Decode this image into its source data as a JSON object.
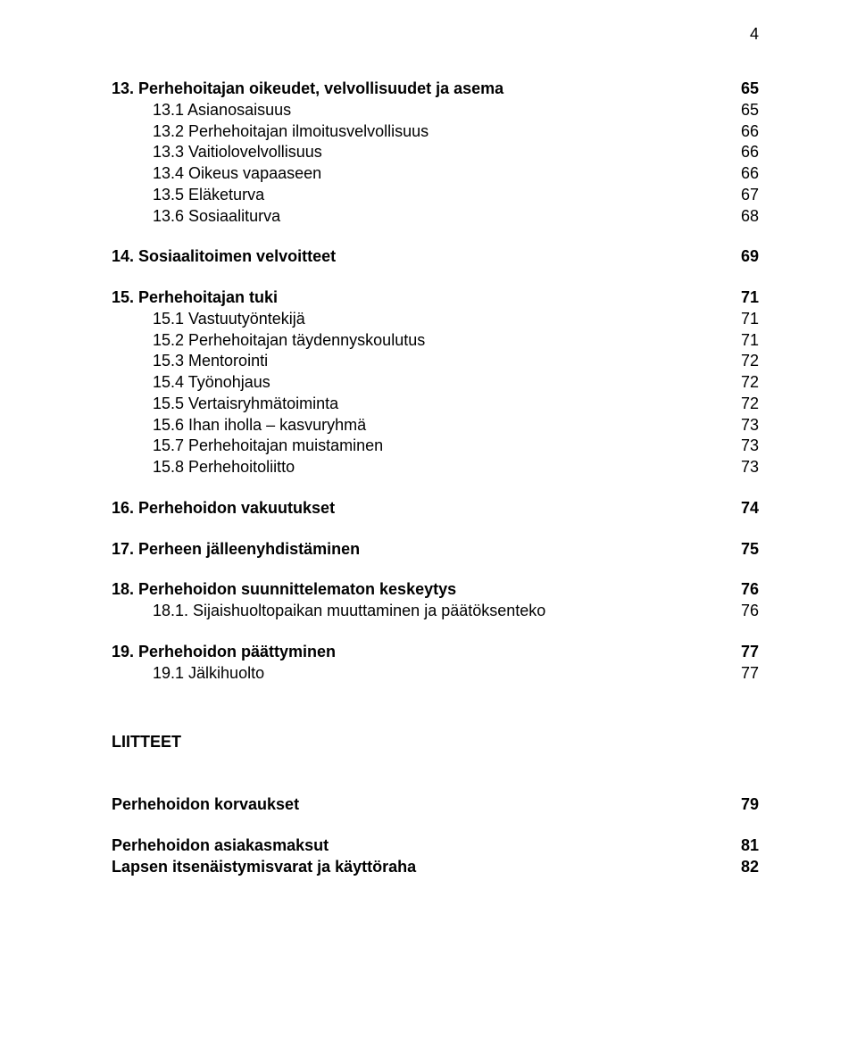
{
  "page_number": "4",
  "blocks": [
    {
      "rows": [
        {
          "label": "13. Perhehoitajan oikeudet, velvollisuudet ja asema",
          "num": "65",
          "bold": true,
          "indent": false
        },
        {
          "label": "13.1 Asianosaisuus",
          "num": "65",
          "bold": false,
          "indent": true
        },
        {
          "label": "13.2 Perhehoitajan ilmoitusvelvollisuus",
          "num": "66",
          "bold": false,
          "indent": true
        },
        {
          "label": "13.3 Vaitiolovelvollisuus",
          "num": "66",
          "bold": false,
          "indent": true
        },
        {
          "label": "13.4 Oikeus vapaaseen",
          "num": "66",
          "bold": false,
          "indent": true
        },
        {
          "label": "13.5 Eläketurva",
          "num": "67",
          "bold": false,
          "indent": true
        },
        {
          "label": "13.6 Sosiaaliturva",
          "num": "68",
          "bold": false,
          "indent": true
        }
      ]
    },
    {
      "rows": [
        {
          "label": "14. Sosiaalitoimen velvoitteet",
          "num": "69",
          "bold": true,
          "indent": false
        }
      ]
    },
    {
      "rows": [
        {
          "label": "15. Perhehoitajan tuki",
          "num": "71",
          "bold": true,
          "indent": false
        },
        {
          "label": "15.1 Vastuutyöntekijä",
          "num": "71",
          "bold": false,
          "indent": true
        },
        {
          "label": "15.2 Perhehoitajan täydennyskoulutus",
          "num": "71",
          "bold": false,
          "indent": true
        },
        {
          "label": "15.3 Mentorointi",
          "num": "72",
          "bold": false,
          "indent": true
        },
        {
          "label": "15.4 Työnohjaus",
          "num": "72",
          "bold": false,
          "indent": true
        },
        {
          "label": "15.5 Vertaisryhmätoiminta",
          "num": "72",
          "bold": false,
          "indent": true
        },
        {
          "label": "15.6 Ihan iholla – kasvuryhmä",
          "num": "73",
          "bold": false,
          "indent": true
        },
        {
          "label": "15.7 Perhehoitajan muistaminen",
          "num": "73",
          "bold": false,
          "indent": true
        },
        {
          "label": "15.8 Perhehoitoliitto",
          "num": "73",
          "bold": false,
          "indent": true
        }
      ]
    },
    {
      "rows": [
        {
          "label": "16. Perhehoidon vakuutukset",
          "num": "74",
          "bold": true,
          "indent": false
        }
      ]
    },
    {
      "rows": [
        {
          "label": "17. Perheen jälleenyhdistäminen",
          "num": "75",
          "bold": true,
          "indent": false
        }
      ]
    },
    {
      "rows": [
        {
          "label": "18. Perhehoidon suunnittelematon keskeytys",
          "num": "76",
          "bold": true,
          "indent": false
        },
        {
          "label": "18.1. Sijaishuoltopaikan muuttaminen ja päätöksenteko",
          "num": "76",
          "bold": false,
          "indent": true
        }
      ]
    },
    {
      "rows": [
        {
          "label": "19. Perhehoidon päättyminen",
          "num": "77",
          "bold": true,
          "indent": false
        },
        {
          "label": "19.1 Jälkihuolto",
          "num": "77",
          "bold": false,
          "indent": true
        }
      ]
    }
  ],
  "attachments": {
    "title": "LIITTEET",
    "rows": [
      {
        "label": "Perhehoidon korvaukset",
        "num": "79",
        "spacer_after": true
      },
      {
        "label": "Perhehoidon asiakasmaksut",
        "num": "81",
        "spacer_after": false
      },
      {
        "label": "Lapsen itsenäistymisvarat ja käyttöraha",
        "num": "82",
        "spacer_after": false
      }
    ]
  }
}
